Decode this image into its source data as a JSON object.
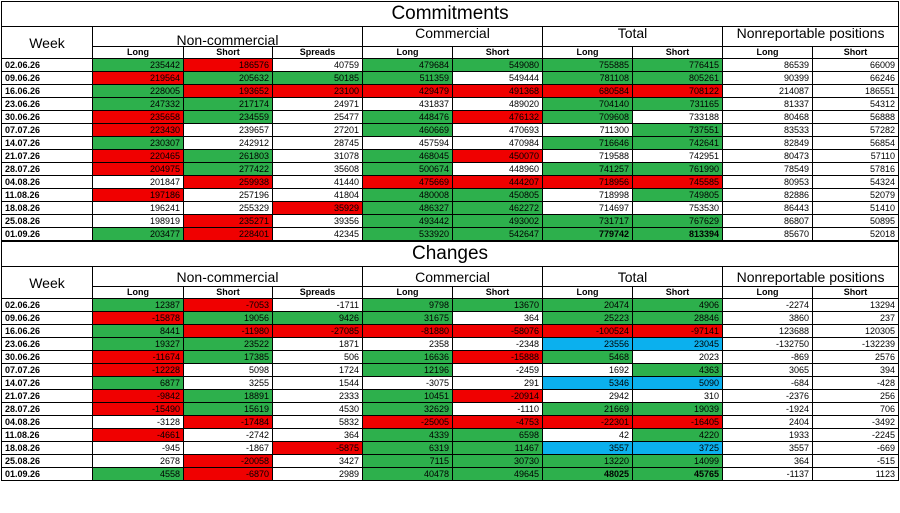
{
  "commitments": {
    "title": "Commitments",
    "headers": {
      "week": "Week",
      "groups": [
        "Non-commercial",
        "Commercial",
        "Total",
        "Nonreportable positions"
      ],
      "sub": [
        "Long",
        "Short",
        "Spreads",
        "Long",
        "Short",
        "Long",
        "Short",
        "Long",
        "Short"
      ]
    },
    "rows": [
      {
        "week": "02.06.26",
        "v": [
          "235442",
          "186576",
          "40759",
          "479684",
          "549080",
          "755885",
          "776415",
          "86539",
          "66009"
        ],
        "c": [
          "g",
          "r",
          "",
          "g",
          "g",
          "g",
          "g",
          "",
          ""
        ]
      },
      {
        "week": "09.06.26",
        "v": [
          "219564",
          "205632",
          "50185",
          "511359",
          "549444",
          "781108",
          "805261",
          "90399",
          "66246"
        ],
        "c": [
          "r",
          "g",
          "g",
          "g",
          "",
          "g",
          "g",
          "",
          ""
        ]
      },
      {
        "week": "16.06.26",
        "v": [
          "228005",
          "193652",
          "23100",
          "429479",
          "491368",
          "680584",
          "708122",
          "214087",
          "186551"
        ],
        "c": [
          "g",
          "r",
          "r",
          "r",
          "r",
          "r",
          "r",
          "",
          ""
        ]
      },
      {
        "week": "23.06.26",
        "v": [
          "247332",
          "217174",
          "24971",
          "431837",
          "489020",
          "704140",
          "731165",
          "81337",
          "54312"
        ],
        "c": [
          "g",
          "g",
          "",
          "",
          "",
          "g",
          "g",
          "",
          ""
        ]
      },
      {
        "week": "30.06.26",
        "v": [
          "235658",
          "234559",
          "25477",
          "448476",
          "476132",
          "709608",
          "733188",
          "80468",
          "56888"
        ],
        "c": [
          "r",
          "g",
          "",
          "g",
          "r",
          "g",
          "",
          "",
          ""
        ]
      },
      {
        "week": "07.07.26",
        "v": [
          "223430",
          "239657",
          "27201",
          "460669",
          "470693",
          "711300",
          "737551",
          "83533",
          "57282"
        ],
        "c": [
          "r",
          "",
          "",
          "g",
          "",
          "",
          "g",
          "",
          ""
        ]
      },
      {
        "week": "14.07.26",
        "v": [
          "230307",
          "242912",
          "28745",
          "457594",
          "470984",
          "716646",
          "742641",
          "82849",
          "56854"
        ],
        "c": [
          "g",
          "",
          "",
          "",
          "",
          "g",
          "g",
          "",
          ""
        ]
      },
      {
        "week": "21.07.26",
        "v": [
          "220465",
          "261803",
          "31078",
          "468045",
          "450070",
          "719588",
          "742951",
          "80473",
          "57110"
        ],
        "c": [
          "r",
          "g",
          "",
          "g",
          "r",
          "",
          "",
          "",
          ""
        ]
      },
      {
        "week": "28.07.26",
        "v": [
          "204975",
          "277422",
          "35608",
          "500674",
          "448960",
          "741257",
          "761990",
          "78549",
          "57816"
        ],
        "c": [
          "r",
          "g",
          "",
          "g",
          "",
          "g",
          "g",
          "",
          ""
        ]
      },
      {
        "week": "04.08.26",
        "v": [
          "201847",
          "259938",
          "41440",
          "475669",
          "444207",
          "718956",
          "745585",
          "80953",
          "54324"
        ],
        "c": [
          "",
          "r",
          "",
          "r",
          "r",
          "r",
          "r",
          "",
          ""
        ]
      },
      {
        "week": "11.08.26",
        "v": [
          "197186",
          "257196",
          "41804",
          "480008",
          "450805",
          "718998",
          "749805",
          "82886",
          "52079"
        ],
        "c": [
          "r",
          "",
          "",
          "g",
          "g",
          "",
          "g",
          "",
          ""
        ]
      },
      {
        "week": "18.08.26",
        "v": [
          "196241",
          "255329",
          "35929",
          "486327",
          "462272",
          "714697",
          "753530",
          "86443",
          "51410"
        ],
        "c": [
          "",
          "",
          "r",
          "g",
          "g",
          "",
          "",
          "",
          ""
        ]
      },
      {
        "week": "25.08.26",
        "v": [
          "198919",
          "235271",
          "39356",
          "493442",
          "493002",
          "731717",
          "767629",
          "86807",
          "50895"
        ],
        "c": [
          "",
          "r",
          "",
          "g",
          "g",
          "g",
          "g",
          "",
          ""
        ]
      },
      {
        "week": "01.09.26",
        "v": [
          "203477",
          "228401",
          "42345",
          "533920",
          "542647",
          "779742",
          "813394",
          "85670",
          "52018"
        ],
        "c": [
          "g",
          "r",
          "",
          "g",
          "g",
          "g",
          "g",
          "",
          ""
        ],
        "b": [
          false,
          false,
          false,
          false,
          false,
          true,
          true,
          false,
          false
        ]
      }
    ]
  },
  "changes": {
    "title": "Changes",
    "headers": {
      "week": "Week",
      "groups": [
        "Non-commercial",
        "Commercial",
        "Total",
        "Nonreportable positions"
      ],
      "sub": [
        "Long",
        "Short",
        "Spreads",
        "Long",
        "Short",
        "Long",
        "Short",
        "Long",
        "Short"
      ]
    },
    "rows": [
      {
        "week": "02.06.26",
        "v": [
          "12387",
          "-7053",
          "-1711",
          "9798",
          "13670",
          "20474",
          "4906",
          "-2274",
          "13294"
        ],
        "c": [
          "g",
          "r",
          "",
          "g",
          "g",
          "g",
          "g",
          "",
          ""
        ]
      },
      {
        "week": "09.06.26",
        "v": [
          "-15878",
          "19056",
          "9426",
          "31675",
          "364",
          "25223",
          "28846",
          "3860",
          "237"
        ],
        "c": [
          "r",
          "g",
          "g",
          "g",
          "",
          "g",
          "g",
          "",
          ""
        ]
      },
      {
        "week": "16.06.26",
        "v": [
          "8441",
          "-11980",
          "-27085",
          "-81880",
          "-58076",
          "-100524",
          "-97141",
          "123688",
          "120305"
        ],
        "c": [
          "g",
          "r",
          "r",
          "r",
          "r",
          "r",
          "r",
          "",
          ""
        ]
      },
      {
        "week": "23.06.26",
        "v": [
          "19327",
          "23522",
          "1871",
          "2358",
          "-2348",
          "23556",
          "23045",
          "-132750",
          "-132239"
        ],
        "c": [
          "g",
          "g",
          "",
          "",
          "",
          "b",
          "b",
          "",
          ""
        ]
      },
      {
        "week": "30.06.26",
        "v": [
          "-11674",
          "17385",
          "506",
          "16636",
          "-15888",
          "5468",
          "2023",
          "-869",
          "2576"
        ],
        "c": [
          "r",
          "g",
          "",
          "g",
          "r",
          "g",
          "",
          "",
          ""
        ]
      },
      {
        "week": "07.07.26",
        "v": [
          "-12228",
          "5098",
          "1724",
          "12196",
          "-2459",
          "1692",
          "4363",
          "3065",
          "394"
        ],
        "c": [
          "r",
          "",
          "",
          "g",
          "",
          "",
          "g",
          "",
          ""
        ]
      },
      {
        "week": "14.07.26",
        "v": [
          "6877",
          "3255",
          "1544",
          "-3075",
          "291",
          "5346",
          "5090",
          "-684",
          "-428"
        ],
        "c": [
          "g",
          "",
          "",
          "",
          "",
          "b",
          "b",
          "",
          ""
        ]
      },
      {
        "week": "21.07.26",
        "v": [
          "-9842",
          "18891",
          "2333",
          "10451",
          "-20914",
          "2942",
          "310",
          "-2376",
          "256"
        ],
        "c": [
          "r",
          "g",
          "",
          "g",
          "r",
          "",
          "",
          "",
          ""
        ]
      },
      {
        "week": "28.07.26",
        "v": [
          "-15490",
          "15619",
          "4530",
          "32629",
          "-1110",
          "21669",
          "19039",
          "-1924",
          "706"
        ],
        "c": [
          "r",
          "g",
          "",
          "g",
          "",
          "g",
          "g",
          "",
          ""
        ]
      },
      {
        "week": "04.08.26",
        "v": [
          "-3128",
          "-17484",
          "5832",
          "-25005",
          "-4753",
          "-22301",
          "-16405",
          "2404",
          "-3492"
        ],
        "c": [
          "",
          "r",
          "",
          "r",
          "r",
          "r",
          "r",
          "",
          ""
        ]
      },
      {
        "week": "11.08.26",
        "v": [
          "-4661",
          "-2742",
          "364",
          "4339",
          "6598",
          "42",
          "4220",
          "1933",
          "-2245"
        ],
        "c": [
          "r",
          "",
          "",
          "g",
          "g",
          "",
          "g",
          "",
          ""
        ]
      },
      {
        "week": "18.08.26",
        "v": [
          "-945",
          "-1867",
          "-5875",
          "6319",
          "11467",
          "3557",
          "3725",
          "3557",
          "-669"
        ],
        "c": [
          "",
          "",
          "r",
          "g",
          "g",
          "b",
          "b",
          "",
          ""
        ]
      },
      {
        "week": "25.08.26",
        "v": [
          "2678",
          "-20058",
          "3427",
          "7115",
          "30730",
          "13220",
          "14099",
          "364",
          "-515"
        ],
        "c": [
          "",
          "r",
          "",
          "g",
          "g",
          "g",
          "g",
          "",
          ""
        ]
      },
      {
        "week": "01.09.26",
        "v": [
          "4558",
          "-6870",
          "2989",
          "40478",
          "49645",
          "48025",
          "45765",
          "-1137",
          "1123"
        ],
        "c": [
          "g",
          "r",
          "",
          "g",
          "g",
          "g",
          "g",
          "",
          ""
        ],
        "b": [
          false,
          false,
          false,
          false,
          false,
          true,
          true,
          false,
          false
        ]
      }
    ]
  }
}
